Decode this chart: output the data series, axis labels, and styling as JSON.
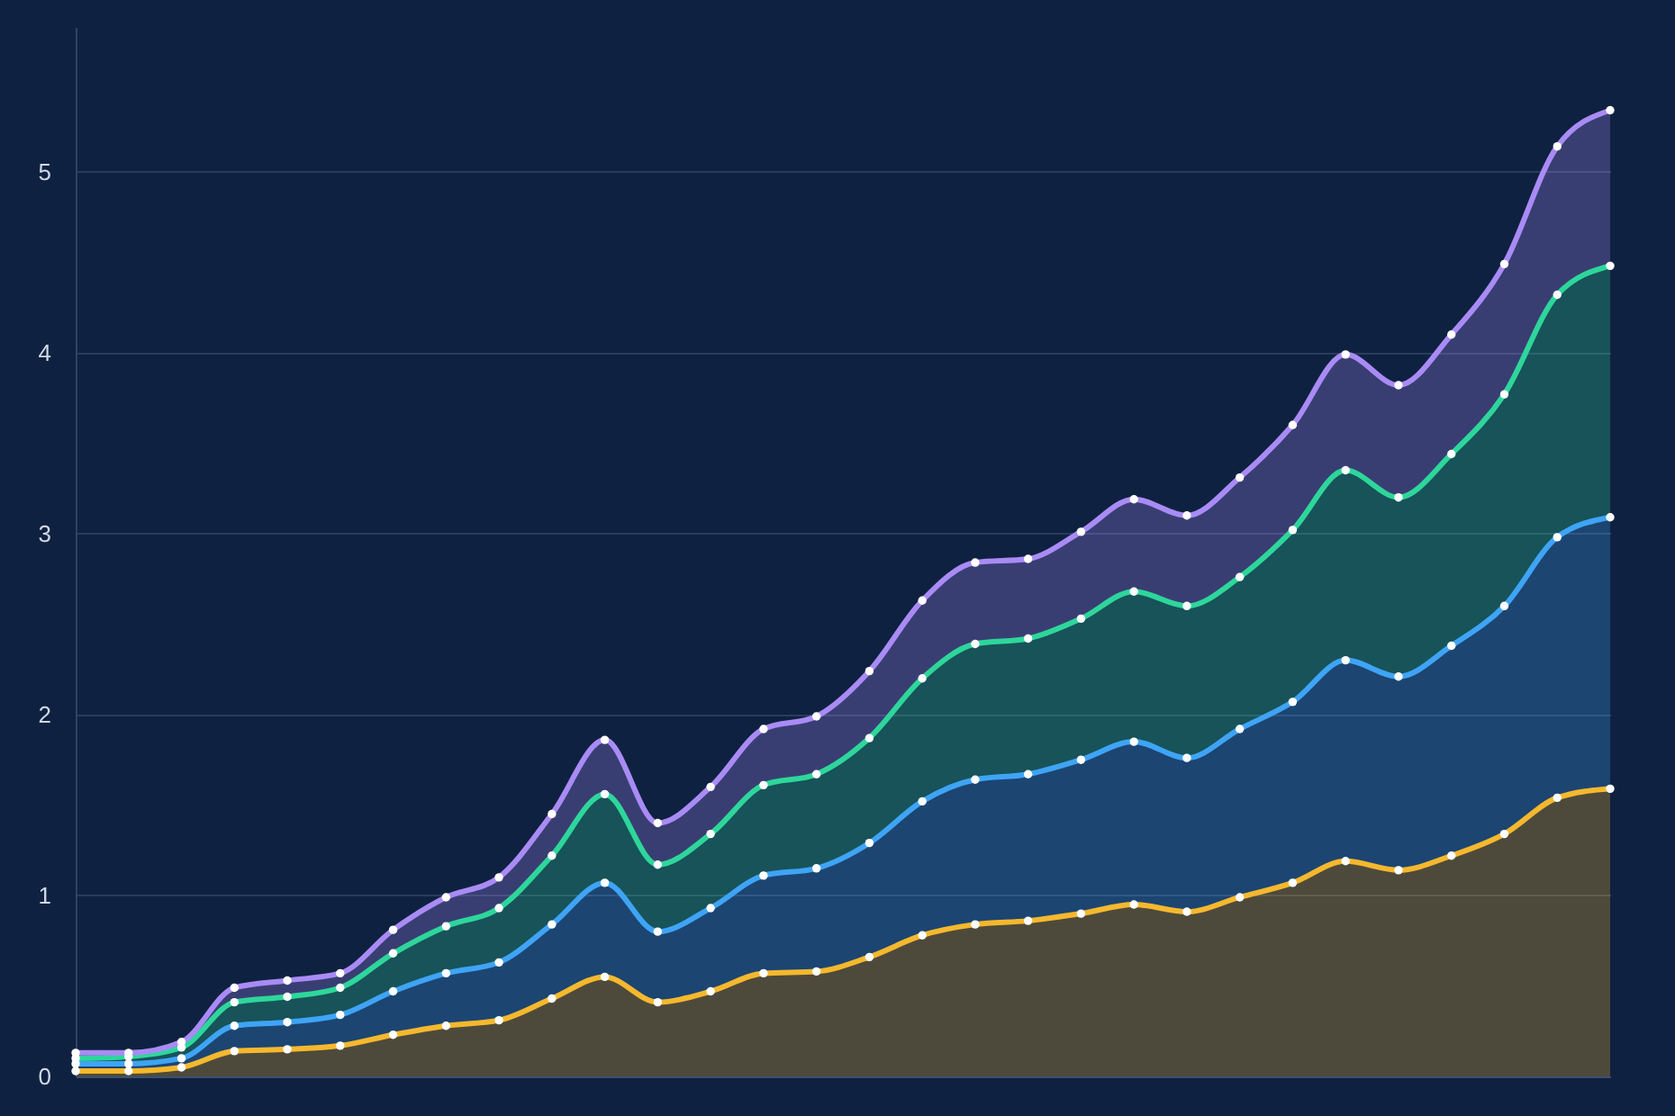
{
  "chart_data": {
    "type": "area",
    "stacked": true,
    "categories": [
      null,
      null,
      null,
      null,
      null,
      null,
      null,
      null,
      null,
      null,
      null,
      null,
      null,
      null,
      null,
      null,
      null,
      null,
      null,
      null,
      null,
      null,
      null,
      null,
      null,
      null,
      null,
      null,
      null,
      null
    ],
    "series": [
      {
        "color": "#f5b82e",
        "values": [
          0.03,
          0.03,
          0.05,
          0.14,
          0.15,
          0.17,
          0.23,
          0.28,
          0.31,
          0.43,
          0.55,
          0.41,
          0.47,
          0.57,
          0.58,
          0.66,
          0.78,
          0.84,
          0.86,
          0.9,
          0.95,
          0.91,
          0.99,
          1.07,
          1.19,
          1.14,
          1.22,
          1.34,
          1.54,
          1.59
        ]
      },
      {
        "color": "#3fa4f5",
        "values": [
          0.04,
          0.04,
          0.05,
          0.14,
          0.15,
          0.17,
          0.24,
          0.29,
          0.32,
          0.41,
          0.52,
          0.39,
          0.46,
          0.54,
          0.57,
          0.63,
          0.74,
          0.8,
          0.81,
          0.85,
          0.9,
          0.85,
          0.93,
          1.0,
          1.11,
          1.07,
          1.16,
          1.26,
          1.44,
          1.5
        ]
      },
      {
        "color": "#2ed69b",
        "values": [
          0.03,
          0.04,
          0.06,
          0.13,
          0.14,
          0.15,
          0.21,
          0.26,
          0.3,
          0.38,
          0.49,
          0.37,
          0.41,
          0.5,
          0.52,
          0.58,
          0.68,
          0.75,
          0.75,
          0.78,
          0.83,
          0.84,
          0.84,
          0.95,
          1.05,
          0.99,
          1.06,
          1.17,
          1.34,
          1.39
        ]
      },
      {
        "color": "#a98bf5",
        "values": [
          0.03,
          0.02,
          0.03,
          0.08,
          0.09,
          0.08,
          0.13,
          0.16,
          0.17,
          0.23,
          0.3,
          0.23,
          0.26,
          0.31,
          0.32,
          0.37,
          0.43,
          0.45,
          0.44,
          0.48,
          0.51,
          0.5,
          0.55,
          0.58,
          0.64,
          0.62,
          0.66,
          0.72,
          0.82,
          0.86
        ]
      }
    ],
    "ylim": [
      0,
      5.8
    ],
    "yticks": [
      0,
      1,
      2,
      3,
      4,
      5
    ],
    "grid": "y",
    "legend": false,
    "marker": "circle",
    "tick_labels": "y"
  }
}
